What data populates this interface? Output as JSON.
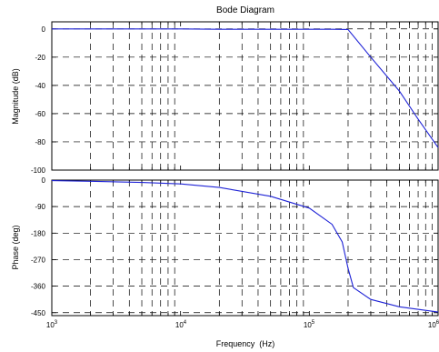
{
  "chart_data": [
    {
      "type": "line",
      "title": "Bode Diagram",
      "xlabel": "",
      "ylabel": "Magnitude (dB)",
      "xscale": "log",
      "xlim": [
        1000,
        1000000
      ],
      "ylim": [
        -100,
        5
      ],
      "yticks": [
        0,
        -20,
        -40,
        -60,
        -80,
        -100
      ],
      "grid": true,
      "series": [
        {
          "x": [
            1000,
            2000,
            5000,
            10000,
            20000,
            50000,
            100000,
            150000,
            200000,
            300000,
            500000,
            700000,
            1000000
          ],
          "values": [
            0,
            0,
            0,
            0,
            -0.3,
            -0.3,
            -0.3,
            -0.3,
            -0.5,
            -20,
            -44,
            -64,
            -84
          ],
          "color": "#1f23d6"
        }
      ]
    },
    {
      "type": "line",
      "xlabel": "Frequency  (Hz)",
      "ylabel": "Phase (deg)",
      "xscale": "log",
      "xlim": [
        1000,
        1000000
      ],
      "ylim": [
        -460,
        0
      ],
      "yticks": [
        0,
        -90,
        -180,
        -270,
        -360,
        -450
      ],
      "grid": true,
      "series": [
        {
          "x": [
            1000,
            2000,
            5000,
            10000,
            20000,
            50000,
            100000,
            150000,
            180000,
            200000,
            220000,
            300000,
            500000,
            1000000
          ],
          "values": [
            -2,
            -4,
            -8,
            -13,
            -25,
            -55,
            -95,
            -150,
            -210,
            -300,
            -365,
            -405,
            -430,
            -448
          ],
          "color": "#1f23d6"
        }
      ]
    }
  ],
  "labels": {
    "title": "Bode Diagram",
    "mag_ylabel": "Magnitude (dB)",
    "phase_ylabel": "Phase (deg)",
    "xlabel": "Frequency  (Hz)",
    "mag_ticks": [
      "0",
      "-20",
      "-40",
      "-60",
      "-80",
      "-100"
    ],
    "phase_ticks": [
      "0",
      "-90",
      "-180",
      "-270",
      "-360",
      "-450"
    ],
    "x_base": [
      "10",
      "10",
      "10",
      "10"
    ],
    "x_exp": [
      "3",
      "4",
      "5",
      "6"
    ]
  }
}
